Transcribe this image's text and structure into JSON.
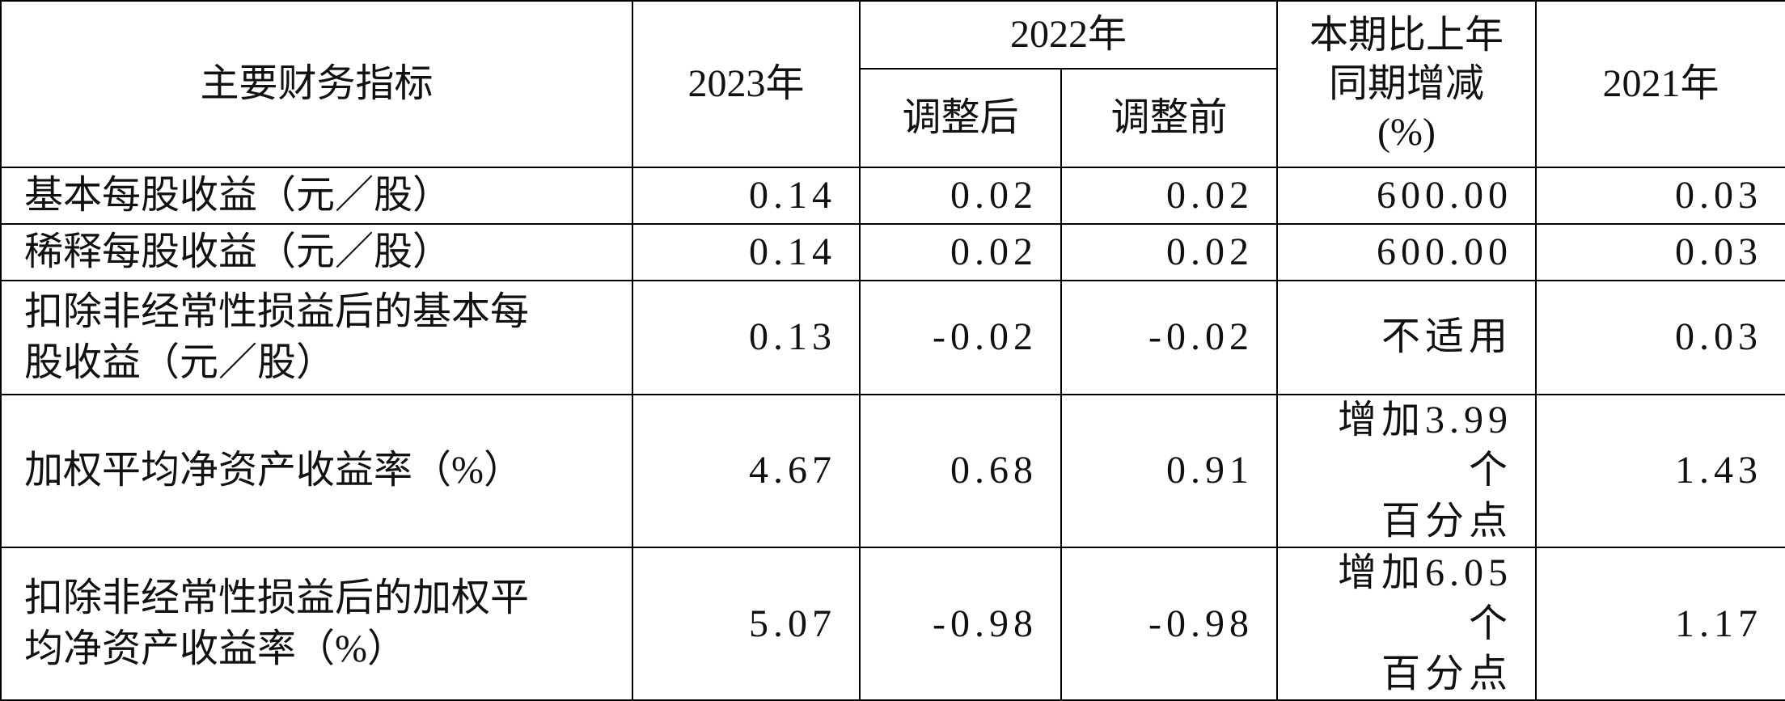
{
  "header": {
    "indicator": "主要财务指标",
    "y2023": "2023年",
    "y2022": "2022年",
    "adjusted": "调整后",
    "before": "调整前",
    "change": [
      "本期比上年",
      "同期增减",
      "(%)"
    ],
    "y2021": "2021年"
  },
  "rows": [
    [
      "基本每股收益（元／股）",
      "0.14",
      "0.02",
      "0.02",
      "600.00",
      "0.03"
    ],
    [
      "稀释每股收益（元／股）",
      "0.14",
      "0.02",
      "0.02",
      "600.00",
      "0.03"
    ],
    [
      "扣除非经常性损益后的基本每股收益（元／股）",
      "0.13",
      "-0.02",
      "-0.02",
      "不适用",
      "0.03"
    ],
    [
      "加权平均净资产收益率（%）",
      "4.67",
      "0.68",
      "0.91",
      [
        "增加3.99个",
        "百分点"
      ],
      "1.43"
    ],
    [
      "扣除非经常性损益后的加权平均净资产收益率（%）",
      "5.07",
      "-0.98",
      "-0.98",
      [
        "增加6.05个",
        "百分点"
      ],
      "1.17"
    ]
  ]
}
